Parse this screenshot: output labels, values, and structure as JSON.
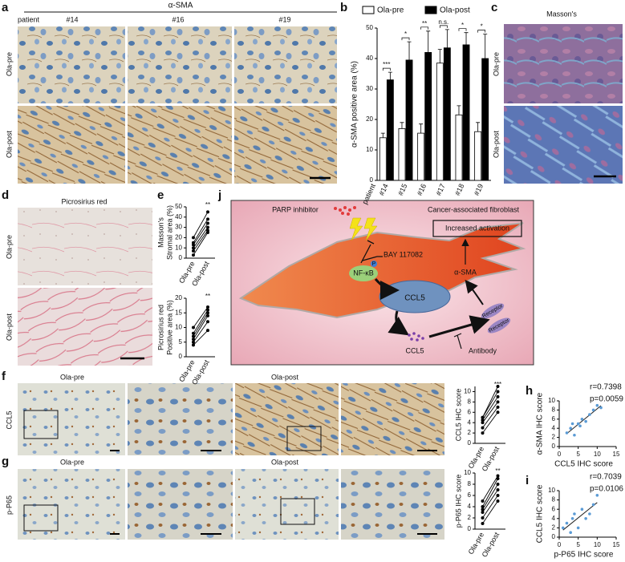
{
  "chart_data": [
    {
      "type": "bar",
      "ylabel": "α-SMA positive area (%)",
      "xlabel": "patient",
      "categories": [
        "#14",
        "#15",
        "#16",
        "#17",
        "#18",
        "#19"
      ],
      "series": [
        {
          "name": "Ola-pre",
          "color": "#ffffff",
          "values": [
            14,
            17,
            15.5,
            38.5,
            21.5,
            16
          ],
          "errors": [
            1.5,
            2,
            3,
            4.5,
            3,
            3
          ]
        },
        {
          "name": "Ola-post",
          "color": "#000000",
          "values": [
            33,
            39.5,
            42,
            43.5,
            44.5,
            40
          ],
          "errors": [
            2.5,
            6,
            7,
            6,
            4,
            8
          ]
        }
      ],
      "annotations": [
        "***",
        "*",
        "**",
        "n.s.",
        "*",
        "*"
      ],
      "ylim": [
        0,
        50
      ],
      "yticks": [
        0,
        10,
        20,
        30,
        40,
        50
      ]
    },
    {
      "type": "line",
      "ylabel": [
        "Masson's",
        "Stromal area (%)"
      ],
      "categories": [
        "Ola-pre",
        "Ola-post"
      ],
      "color": "#000000",
      "series": [
        {
          "values": [
            3,
            25
          ]
        },
        {
          "values": [
            7,
            27
          ]
        },
        {
          "values": [
            10,
            30
          ]
        },
        {
          "values": [
            13,
            34
          ]
        },
        {
          "values": [
            15,
            38
          ]
        },
        {
          "values": [
            20,
            45
          ]
        }
      ],
      "annotations": [
        "**"
      ],
      "ylim": [
        0,
        50
      ],
      "yticks": [
        0,
        10,
        20,
        30,
        40,
        50
      ]
    },
    {
      "type": "line",
      "ylabel": [
        "Picrosirius red",
        "Positive area (%)"
      ],
      "categories": [
        "Ola-pre",
        "Ola-post"
      ],
      "color": "#000000",
      "series": [
        {
          "values": [
            4,
            9
          ]
        },
        {
          "values": [
            5,
            12
          ]
        },
        {
          "values": [
            6,
            14
          ]
        },
        {
          "values": [
            7,
            15
          ]
        },
        {
          "values": [
            8,
            16
          ]
        },
        {
          "values": [
            10,
            17
          ]
        }
      ],
      "annotations": [
        "**"
      ],
      "ylim": [
        0,
        20
      ],
      "yticks": [
        0,
        5,
        10,
        15,
        20
      ]
    },
    {
      "type": "line",
      "ylabel": [
        "CCL5 IHC score"
      ],
      "categories": [
        "Ola-pre",
        "Ola-post"
      ],
      "color": "#000000",
      "series": [
        {
          "values": [
            2,
            6
          ]
        },
        {
          "values": [
            3,
            7
          ]
        },
        {
          "values": [
            4,
            8
          ]
        },
        {
          "values": [
            4.5,
            9
          ]
        },
        {
          "values": [
            5,
            10
          ]
        },
        {
          "values": [
            5,
            11
          ]
        }
      ],
      "annotations": [
        "***"
      ],
      "ylim": [
        0,
        11
      ],
      "yticks": [
        0,
        2,
        4,
        6,
        8,
        10
      ]
    },
    {
      "type": "line",
      "ylabel": [
        "p-P65 IHC score"
      ],
      "categories": [
        "Ola-pre",
        "Ola-post"
      ],
      "color": "#000000",
      "series": [
        {
          "values": [
            1,
            5
          ]
        },
        {
          "values": [
            2,
            6
          ]
        },
        {
          "values": [
            3,
            7
          ]
        },
        {
          "values": [
            3.5,
            8
          ]
        },
        {
          "values": [
            4,
            9
          ]
        },
        {
          "values": [
            5,
            9.5
          ]
        }
      ],
      "annotations": [
        "**"
      ],
      "ylim": [
        0,
        10
      ],
      "yticks": [
        0,
        2,
        4,
        6,
        8,
        10
      ]
    },
    {
      "type": "scatter",
      "xlabel": "CCL5 IHC score",
      "ylabel": "α-SMA IHC score",
      "color": "#5b9bd5",
      "x": [
        2,
        3,
        3.5,
        4,
        5,
        5.5,
        6,
        7,
        8,
        9,
        10,
        11
      ],
      "values": [
        3,
        4,
        5,
        2.5,
        5,
        4.5,
        6,
        5.5,
        7,
        8,
        9,
        8.5
      ],
      "annotations": [
        "r=0.7398",
        "p=0.0059"
      ],
      "xlim": [
        0,
        15
      ],
      "xticks": [
        0,
        5,
        10,
        15
      ],
      "ylim": [
        0,
        10
      ],
      "yticks": [
        0,
        2,
        4,
        6,
        8,
        10
      ]
    },
    {
      "type": "scatter",
      "xlabel": "p-P65 IHC score",
      "ylabel": "CCL5 IHC score",
      "color": "#5b9bd5",
      "x": [
        1,
        2,
        3,
        3.5,
        4,
        5,
        6,
        7,
        8,
        9,
        10
      ],
      "values": [
        2,
        3,
        1,
        4,
        5,
        2,
        6,
        4,
        5,
        7,
        9
      ],
      "annotations": [
        "r=0.7039",
        "p=0.0106"
      ],
      "xlim": [
        0,
        15
      ],
      "xticks": [
        0,
        5,
        10,
        15
      ],
      "ylim": [
        0,
        10
      ],
      "yticks": [
        0,
        2,
        4,
        6,
        8,
        10
      ]
    }
  ],
  "figure": {
    "panel_labels": [
      "a",
      "b",
      "c",
      "d",
      "e",
      "f",
      "g",
      "h",
      "i",
      "j"
    ],
    "a": {
      "title": "α-SMA",
      "patient": "patient",
      "columns": [
        "#14",
        "#16",
        "#19"
      ],
      "rows": [
        "Ola-pre",
        "Ola-post"
      ]
    },
    "c": {
      "title": "Masson's",
      "rows": [
        "Ola-pre",
        "Ola-post"
      ]
    },
    "d": {
      "title": "Picrosirius red",
      "rows": [
        "Ola-pre",
        "Ola-post"
      ]
    },
    "f": {
      "columns": [
        "Ola-pre",
        "Ola-post"
      ],
      "row": "CCL5"
    },
    "g": {
      "columns": [
        "Ola-pre",
        "Ola-post"
      ],
      "row": "p-P65"
    },
    "j": {
      "parp": "PARP inhibitor",
      "caf": "Cancer-associated fibroblast",
      "activation": "Increased activation",
      "bay": "BAY 117082",
      "nfkb": "NF-κB",
      "p": "P",
      "ccl5_nucleus": "CCL5",
      "asma": "α-SMA",
      "receptors": [
        "Receptor",
        "Receptor"
      ],
      "ccl5_secreted": "CCL5",
      "antibody": "Antibody"
    }
  }
}
